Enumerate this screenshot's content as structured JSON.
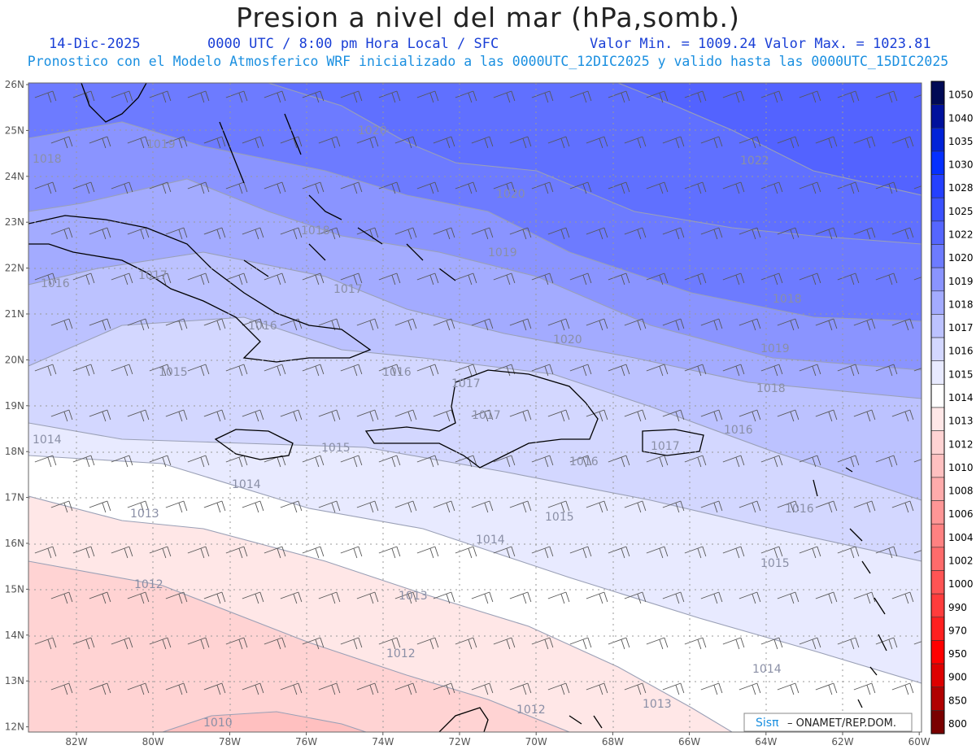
{
  "header": {
    "title": "Presion a nivel del mar (hPa,somb.)",
    "date": "14-Dic-2025",
    "time": "0000 UTC / 8:00 pm Hora Local / SFC",
    "minmax": "Valor Min. = 1009.24  Valor Max. = 1023.81",
    "forecast": "Pronostico con el Modelo Atmosferico WRF inicializado a las 0000UTC_12DIC2025 y valido hasta las  0000UTC_15DIC2025"
  },
  "axes": {
    "lat_labels": [
      "26N",
      "25N",
      "24N",
      "23N",
      "22N",
      "21N",
      "20N",
      "19N",
      "18N",
      "17N",
      "16N",
      "15N",
      "14N",
      "13N",
      "12N"
    ],
    "lon_labels": [
      "82W",
      "80W",
      "78W",
      "76W",
      "74W",
      "72W",
      "70W",
      "68W",
      "66W",
      "64W",
      "62W",
      "60W"
    ]
  },
  "colorbar": {
    "levels": [
      "1050",
      "1040",
      "1035",
      "1030",
      "1028",
      "1025",
      "1022",
      "1020",
      "1019",
      "1018",
      "1017",
      "1016",
      "1015",
      "1014",
      "1013",
      "1012",
      "1010",
      "1008",
      "1006",
      "1004",
      "1002",
      "1000",
      "990",
      "970",
      "950",
      "900",
      "850",
      "800"
    ],
    "colors": [
      "#000a55",
      "#00119c",
      "#0022d8",
      "#0530ff",
      "#2540ff",
      "#3b52ff",
      "#5566ff",
      "#6d7bff",
      "#8a94ff",
      "#a3abff",
      "#bcc2ff",
      "#d3d7ff",
      "#e8eaff",
      "#ffffff",
      "#ffe7e7",
      "#ffd3d3",
      "#ffc0c0",
      "#ffabab",
      "#ff9696",
      "#ff8181",
      "#ff6b6b",
      "#ff5454",
      "#ff3c3c",
      "#ff2020",
      "#ff0000",
      "#dd0000",
      "#b00000",
      "#7a0000"
    ]
  },
  "contour_labels": [
    "1018",
    "1019",
    "1020",
    "1020",
    "1022",
    "1018",
    "1019",
    "1016",
    "1017",
    "1017",
    "1016",
    "1020",
    "1015",
    "1018",
    "1019",
    "1016",
    "1017",
    "1017",
    "1018",
    "1014",
    "1015",
    "1016",
    "1017",
    "1016",
    "1014",
    "1015",
    "1014",
    "1013",
    "1015",
    "1016",
    "1012",
    "1013",
    "1014",
    "1012",
    "1013",
    "1012",
    "1010"
  ],
  "credits": {
    "brand": "Sisπ",
    "org": " – ONAMET/REP.DOM."
  }
}
